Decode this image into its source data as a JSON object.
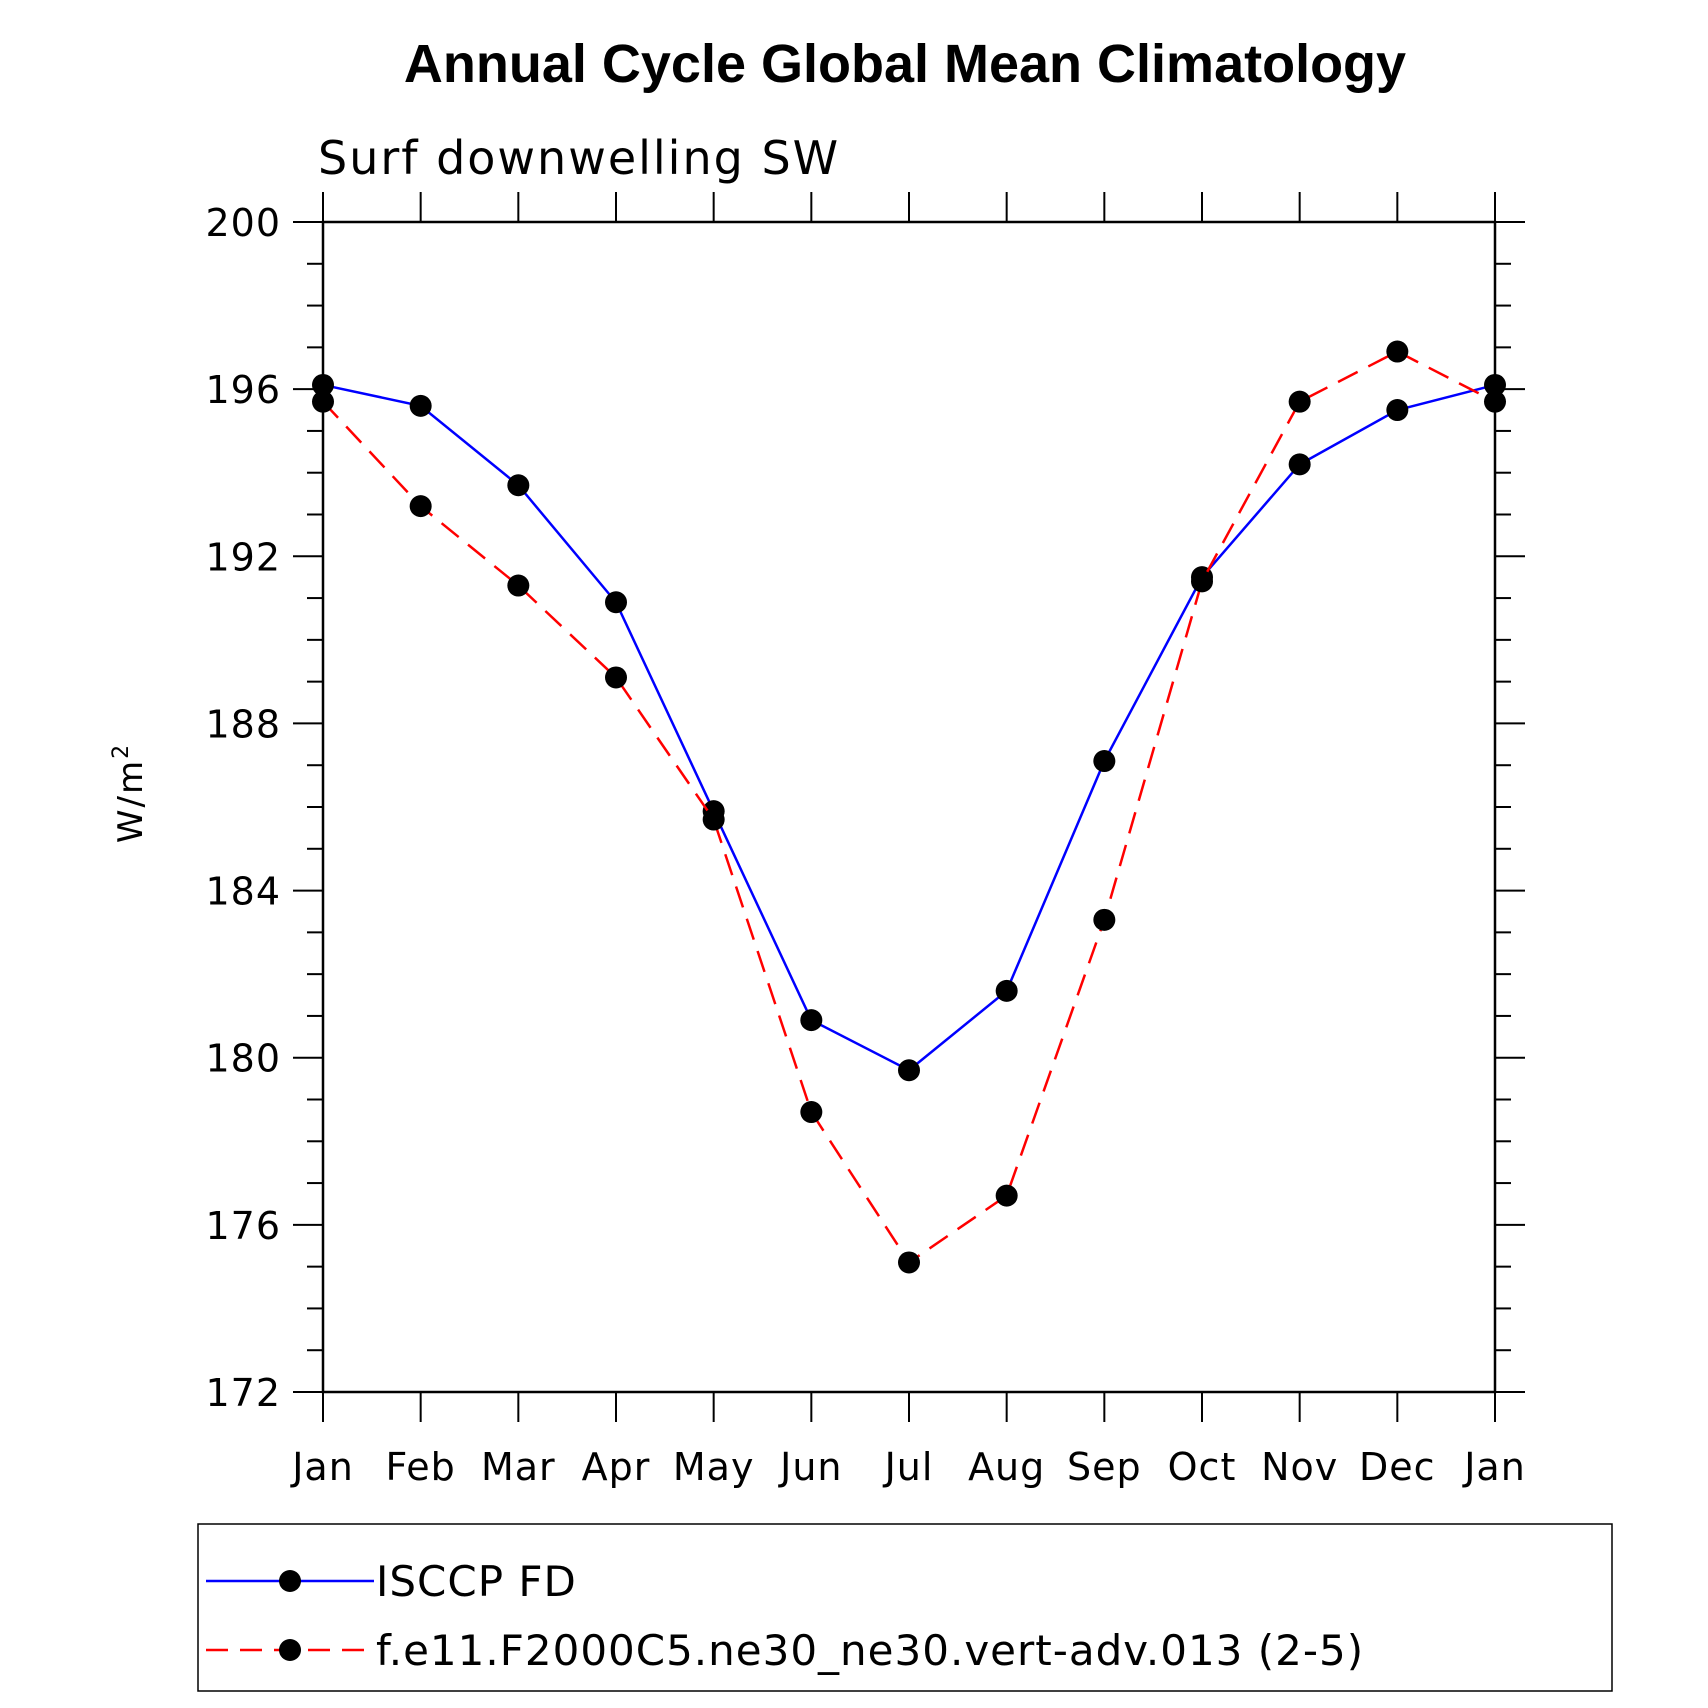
{
  "chart_data": {
    "type": "line",
    "title": "Annual Cycle Global Mean Climatology",
    "subtitle": "Surf downwelling SW",
    "ylabel": "W/m",
    "ylabel_sup": "2",
    "xlabel": "",
    "categories": [
      "Jan",
      "Feb",
      "Mar",
      "Apr",
      "May",
      "Jun",
      "Jul",
      "Aug",
      "Sep",
      "Oct",
      "Nov",
      "Dec",
      "Jan"
    ],
    "ylim": [
      172,
      200
    ],
    "yticks": [
      172,
      176,
      180,
      184,
      188,
      192,
      196,
      200
    ],
    "grid": false,
    "legend_position": "bottom",
    "series": [
      {
        "name": "ISCCP FD",
        "color": "#0000ff",
        "style": "solid",
        "marker": "filled-circle",
        "values": [
          196.1,
          195.6,
          193.7,
          190.9,
          185.9,
          180.9,
          179.7,
          181.6,
          187.1,
          191.5,
          194.2,
          195.5,
          196.1
        ]
      },
      {
        "name": "f.e11.F2000C5.ne30_ne30.vert-adv.013 (2-5)",
        "color": "#ff0000",
        "style": "dashed",
        "marker": "filled-circle",
        "values": [
          195.7,
          193.2,
          191.3,
          189.1,
          185.7,
          178.7,
          175.1,
          176.7,
          183.3,
          191.4,
          195.7,
          196.9,
          195.7
        ]
      }
    ]
  }
}
